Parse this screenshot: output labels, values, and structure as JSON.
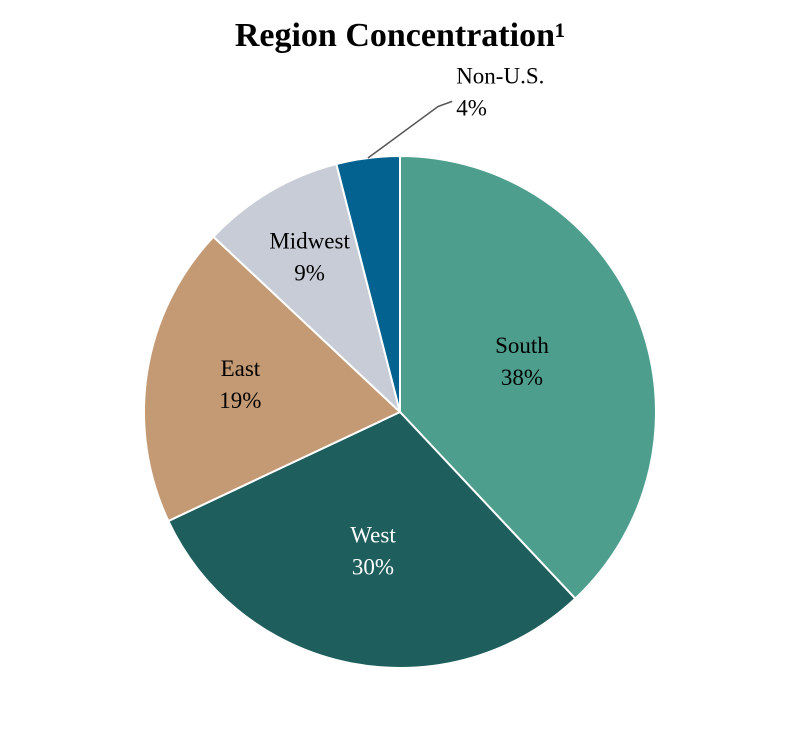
{
  "chart_data": {
    "type": "pie",
    "title": "Region Concentration¹",
    "categories": [
      "South",
      "West",
      "East",
      "Midwest",
      "Non-U.S."
    ],
    "values": [
      38,
      30,
      19,
      9,
      4
    ],
    "value_labels": [
      "38%",
      "30%",
      "19%",
      "9%",
      "4%"
    ],
    "colors": [
      "#4e9e8e",
      "#1e5e5c",
      "#c49a74",
      "#c8ccd6",
      "#03628f"
    ]
  }
}
